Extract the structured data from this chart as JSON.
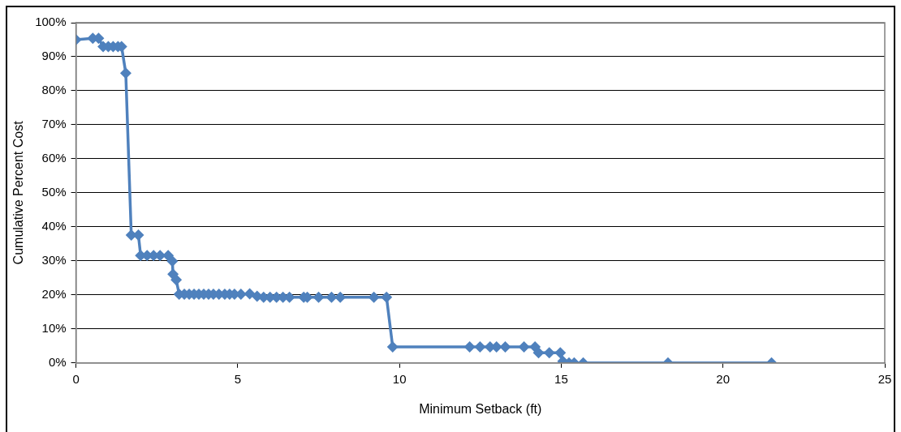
{
  "chart_data": {
    "type": "line",
    "xlabel": "Minimum Setback (ft)",
    "ylabel": "Cumulative Percent Cost",
    "xlim": [
      0,
      25
    ],
    "xticks": [
      0,
      5,
      10,
      15,
      20,
      25
    ],
    "ylim": [
      0,
      100
    ],
    "yticks": [
      {
        "value": 0,
        "label": "0%"
      },
      {
        "value": 10,
        "label": "10%"
      },
      {
        "value": 20,
        "label": "20%"
      },
      {
        "value": 30,
        "label": "30%"
      },
      {
        "value": 40,
        "label": "40%"
      },
      {
        "value": 50,
        "label": "50%"
      },
      {
        "value": 60,
        "label": "60%"
      },
      {
        "value": 70,
        "label": "70%"
      },
      {
        "value": 80,
        "label": "80%"
      },
      {
        "value": 90,
        "label": "90%"
      },
      {
        "value": 100,
        "label": "100%"
      }
    ],
    "grid": "y",
    "legend": false,
    "marker": "diamond",
    "line_style": "solid",
    "series": [
      {
        "color": "#4f81bd",
        "x": [
          0,
          0.52,
          0.7,
          0.84,
          1.0,
          1.15,
          1.3,
          1.41,
          1.54,
          1.71,
          1.93,
          2.0,
          2.2,
          2.4,
          2.6,
          2.85,
          2.98,
          3.0,
          3.1,
          3.19,
          3.35,
          3.5,
          3.65,
          3.8,
          3.95,
          4.1,
          4.25,
          4.42,
          4.6,
          4.75,
          4.9,
          5.1,
          5.37,
          5.6,
          5.8,
          6.0,
          6.2,
          6.4,
          6.6,
          7.04,
          7.15,
          7.5,
          7.9,
          8.17,
          9.21,
          9.6,
          9.79,
          12.17,
          12.49,
          12.8,
          13.0,
          13.27,
          13.85,
          14.19,
          14.3,
          14.63,
          14.97,
          15.05,
          15.24,
          15.4,
          15.68,
          18.3,
          21.5
        ],
        "values": [
          95,
          95.4,
          95.4,
          93,
          93,
          93,
          93,
          93,
          85.2,
          37.6,
          37.6,
          31.6,
          31.6,
          31.6,
          31.6,
          31.6,
          29.9,
          26.1,
          24.4,
          20.2,
          20.2,
          20.2,
          20.2,
          20.2,
          20.2,
          20.2,
          20.2,
          20.2,
          20.2,
          20.2,
          20.2,
          20.2,
          20.3,
          19.6,
          19.3,
          19.3,
          19.3,
          19.3,
          19.3,
          19.3,
          19.3,
          19.3,
          19.3,
          19.3,
          19.3,
          19.3,
          4.7,
          4.7,
          4.7,
          4.7,
          4.7,
          4.7,
          4.7,
          4.7,
          3,
          3,
          3,
          0.5,
          0,
          0,
          0,
          0,
          0
        ]
      }
    ]
  }
}
